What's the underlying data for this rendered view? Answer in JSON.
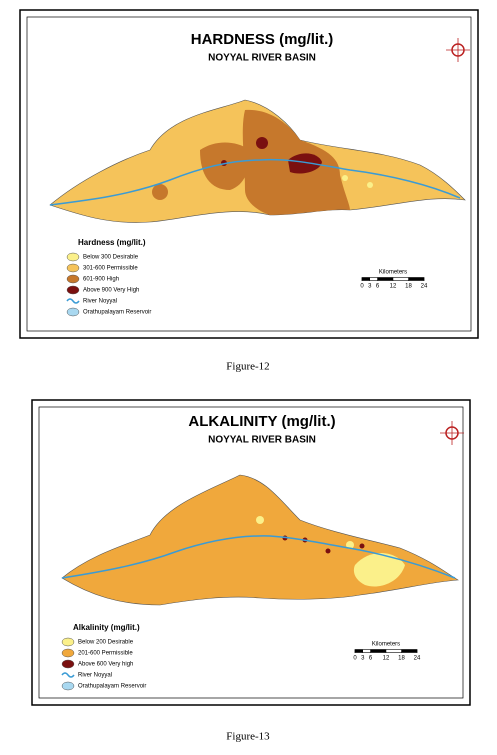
{
  "maps": [
    {
      "title": "HARDNESS (mg/lit.)",
      "subtitle": "NOYYAL RIVER BASIN",
      "legend_title": "Hardness (mg/lit.)",
      "legend": [
        {
          "label": "Below 300  Desirable",
          "color": "#fbf08a"
        },
        {
          "label": "301-600   Permissible",
          "color": "#f5c35a"
        },
        {
          "label": "601-900     High",
          "color": "#c6782c"
        },
        {
          "label": "Above 900  Very High",
          "color": "#7a1010"
        },
        {
          "label": "River Noyyal",
          "color": "#3a9bd5"
        },
        {
          "label": "Orathupalayam Reservoir",
          "color": "#a9d8f0"
        }
      ],
      "scale_title": "Kilometers",
      "scale_ticks": [
        0,
        3,
        6,
        12,
        18,
        24
      ],
      "caption": "Figure-12"
    },
    {
      "title": "ALKALINITY (mg/lit.)",
      "subtitle": "NOYYAL RIVER BASIN",
      "legend_title": "Alkalinity (mg/lit.)",
      "legend": [
        {
          "label": "Below 200  Desirable",
          "color": "#fbf08a"
        },
        {
          "label": "201-600     Permissible",
          "color": "#f0a83c"
        },
        {
          "label": "Above 600  Very high",
          "color": "#7a1010"
        },
        {
          "label": "River Noyyal",
          "color": "#3a9bd5"
        },
        {
          "label": "Orathupalayam Reservoir",
          "color": "#a9d8f0"
        }
      ],
      "scale_title": "Kilometers",
      "scale_ticks": [
        0,
        3,
        6,
        12,
        18,
        24
      ],
      "caption": "Figure-13"
    }
  ]
}
